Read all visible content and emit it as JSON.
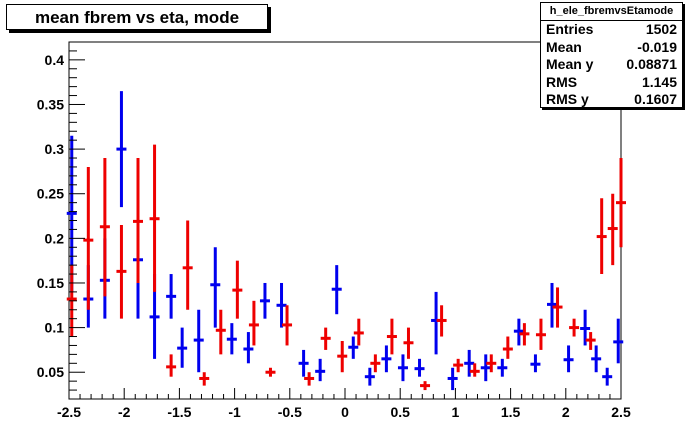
{
  "title": "mean fbrem vs eta, mode",
  "stats": {
    "name": "h_ele_fbremvsEtamode",
    "rows": [
      {
        "label": "Entries",
        "value": "1502"
      },
      {
        "label": "Mean",
        "value": "-0.019"
      },
      {
        "label": "Mean y",
        "value": "0.08871"
      },
      {
        "label": "RMS",
        "value": "1.145"
      },
      {
        "label": "RMS y",
        "value": "0.1607"
      }
    ]
  },
  "chart_data": {
    "type": "scatter",
    "title": "mean fbrem vs eta, mode",
    "xlabel": "",
    "ylabel": "",
    "xlim": [
      -2.5,
      2.5
    ],
    "ylim": [
      0.02,
      0.42
    ],
    "xticks": [
      -2.5,
      -2,
      -1.5,
      -1,
      -0.5,
      0,
      0.5,
      1,
      1.5,
      2,
      2.5
    ],
    "xtick_labels": [
      "-2.5",
      "-2",
      "-1.5",
      "-1",
      "-0.5",
      "0",
      "0.5",
      "1",
      "1.5",
      "2",
      "2.5"
    ],
    "yticks": [
      0.05,
      0.1,
      0.15,
      0.2,
      0.25,
      0.3,
      0.35,
      0.4
    ],
    "ytick_labels": [
      "0.05",
      "0.1",
      "0.15",
      "0.2",
      "0.25",
      "0.3",
      "0.35",
      "0.4"
    ],
    "grid": false,
    "colors": {
      "blue": "#0000ee",
      "red": "#ee0000"
    },
    "series": [
      {
        "color": "blue",
        "points": [
          {
            "x": -2.475,
            "y": 0.228,
            "ylo": 0.14,
            "yhi": 0.315
          },
          {
            "x": -2.325,
            "y": 0.132,
            "ylo": 0.1,
            "yhi": 0.17
          },
          {
            "x": -2.175,
            "y": 0.153,
            "ylo": 0.11,
            "yhi": 0.2
          },
          {
            "x": -2.025,
            "y": 0.3,
            "ylo": 0.235,
            "yhi": 0.365
          },
          {
            "x": -1.875,
            "y": 0.176,
            "ylo": 0.11,
            "yhi": 0.25
          },
          {
            "x": -1.725,
            "y": 0.112,
            "ylo": 0.065,
            "yhi": 0.16
          },
          {
            "x": -1.575,
            "y": 0.135,
            "ylo": 0.11,
            "yhi": 0.16
          },
          {
            "x": -1.475,
            "y": 0.077,
            "ylo": 0.055,
            "yhi": 0.1
          },
          {
            "x": -1.325,
            "y": 0.086,
            "ylo": 0.05,
            "yhi": 0.12
          },
          {
            "x": -1.175,
            "y": 0.148,
            "ylo": 0.1,
            "yhi": 0.19
          },
          {
            "x": -1.025,
            "y": 0.087,
            "ylo": 0.07,
            "yhi": 0.105
          },
          {
            "x": -0.875,
            "y": 0.076,
            "ylo": 0.06,
            "yhi": 0.095
          },
          {
            "x": -0.725,
            "y": 0.13,
            "ylo": 0.11,
            "yhi": 0.15
          },
          {
            "x": -0.575,
            "y": 0.125,
            "ylo": 0.1,
            "yhi": 0.15
          },
          {
            "x": -0.375,
            "y": 0.06,
            "ylo": 0.045,
            "yhi": 0.075
          },
          {
            "x": -0.225,
            "y": 0.051,
            "ylo": 0.04,
            "yhi": 0.065
          },
          {
            "x": -0.075,
            "y": 0.143,
            "ylo": 0.115,
            "yhi": 0.17
          },
          {
            "x": 0.075,
            "y": 0.078,
            "ylo": 0.065,
            "yhi": 0.09
          },
          {
            "x": 0.225,
            "y": 0.045,
            "ylo": 0.035,
            "yhi": 0.055
          },
          {
            "x": 0.375,
            "y": 0.065,
            "ylo": 0.05,
            "yhi": 0.08
          },
          {
            "x": 0.525,
            "y": 0.055,
            "ylo": 0.04,
            "yhi": 0.07
          },
          {
            "x": 0.675,
            "y": 0.054,
            "ylo": 0.045,
            "yhi": 0.065
          },
          {
            "x": 0.825,
            "y": 0.108,
            "ylo": 0.07,
            "yhi": 0.14
          },
          {
            "x": 0.975,
            "y": 0.043,
            "ylo": 0.03,
            "yhi": 0.055
          },
          {
            "x": 1.125,
            "y": 0.06,
            "ylo": 0.045,
            "yhi": 0.075
          },
          {
            "x": 1.275,
            "y": 0.055,
            "ylo": 0.04,
            "yhi": 0.07
          },
          {
            "x": 1.425,
            "y": 0.055,
            "ylo": 0.045,
            "yhi": 0.065
          },
          {
            "x": 1.575,
            "y": 0.096,
            "ylo": 0.08,
            "yhi": 0.11
          },
          {
            "x": 1.725,
            "y": 0.059,
            "ylo": 0.05,
            "yhi": 0.07
          },
          {
            "x": 1.875,
            "y": 0.126,
            "ylo": 0.1,
            "yhi": 0.15
          },
          {
            "x": 2.025,
            "y": 0.064,
            "ylo": 0.05,
            "yhi": 0.08
          },
          {
            "x": 2.175,
            "y": 0.099,
            "ylo": 0.08,
            "yhi": 0.12
          },
          {
            "x": 2.275,
            "y": 0.065,
            "ylo": 0.05,
            "yhi": 0.08
          },
          {
            "x": 2.375,
            "y": 0.045,
            "ylo": 0.035,
            "yhi": 0.055
          },
          {
            "x": 2.475,
            "y": 0.084,
            "ylo": 0.06,
            "yhi": 0.11
          }
        ]
      },
      {
        "color": "red",
        "points": [
          {
            "x": -2.475,
            "y": 0.132,
            "ylo": 0.09,
            "yhi": 0.17
          },
          {
            "x": -2.325,
            "y": 0.198,
            "ylo": 0.12,
            "yhi": 0.28
          },
          {
            "x": -2.175,
            "y": 0.213,
            "ylo": 0.135,
            "yhi": 0.29
          },
          {
            "x": -2.025,
            "y": 0.163,
            "ylo": 0.11,
            "yhi": 0.215
          },
          {
            "x": -1.875,
            "y": 0.219,
            "ylo": 0.15,
            "yhi": 0.29
          },
          {
            "x": -1.725,
            "y": 0.222,
            "ylo": 0.14,
            "yhi": 0.305
          },
          {
            "x": -1.575,
            "y": 0.056,
            "ylo": 0.045,
            "yhi": 0.07
          },
          {
            "x": -1.425,
            "y": 0.167,
            "ylo": 0.12,
            "yhi": 0.22
          },
          {
            "x": -1.275,
            "y": 0.043,
            "ylo": 0.035,
            "yhi": 0.05
          },
          {
            "x": -1.125,
            "y": 0.097,
            "ylo": 0.07,
            "yhi": 0.12
          },
          {
            "x": -0.975,
            "y": 0.142,
            "ylo": 0.11,
            "yhi": 0.175
          },
          {
            "x": -0.825,
            "y": 0.103,
            "ylo": 0.08,
            "yhi": 0.13
          },
          {
            "x": -0.675,
            "y": 0.05,
            "ylo": 0.045,
            "yhi": 0.055
          },
          {
            "x": -0.525,
            "y": 0.103,
            "ylo": 0.08,
            "yhi": 0.125
          },
          {
            "x": -0.325,
            "y": 0.043,
            "ylo": 0.035,
            "yhi": 0.05
          },
          {
            "x": -0.175,
            "y": 0.088,
            "ylo": 0.075,
            "yhi": 0.1
          },
          {
            "x": -0.025,
            "y": 0.068,
            "ylo": 0.05,
            "yhi": 0.085
          },
          {
            "x": 0.125,
            "y": 0.094,
            "ylo": 0.08,
            "yhi": 0.11
          },
          {
            "x": 0.275,
            "y": 0.06,
            "ylo": 0.05,
            "yhi": 0.07
          },
          {
            "x": 0.425,
            "y": 0.09,
            "ylo": 0.07,
            "yhi": 0.11
          },
          {
            "x": 0.575,
            "y": 0.083,
            "ylo": 0.065,
            "yhi": 0.1
          },
          {
            "x": 0.725,
            "y": 0.035,
            "ylo": 0.03,
            "yhi": 0.04
          },
          {
            "x": 0.875,
            "y": 0.108,
            "ylo": 0.09,
            "yhi": 0.125
          },
          {
            "x": 1.025,
            "y": 0.058,
            "ylo": 0.05,
            "yhi": 0.065
          },
          {
            "x": 1.175,
            "y": 0.051,
            "ylo": 0.045,
            "yhi": 0.06
          },
          {
            "x": 1.325,
            "y": 0.06,
            "ylo": 0.05,
            "yhi": 0.07
          },
          {
            "x": 1.475,
            "y": 0.076,
            "ylo": 0.065,
            "yhi": 0.09
          },
          {
            "x": 1.625,
            "y": 0.093,
            "ylo": 0.08,
            "yhi": 0.105
          },
          {
            "x": 1.775,
            "y": 0.092,
            "ylo": 0.075,
            "yhi": 0.11
          },
          {
            "x": 1.925,
            "y": 0.123,
            "ylo": 0.1,
            "yhi": 0.145
          },
          {
            "x": 2.075,
            "y": 0.1,
            "ylo": 0.09,
            "yhi": 0.11
          },
          {
            "x": 2.225,
            "y": 0.086,
            "ylo": 0.075,
            "yhi": 0.095
          },
          {
            "x": 2.325,
            "y": 0.202,
            "ylo": 0.16,
            "yhi": 0.245
          },
          {
            "x": 2.425,
            "y": 0.211,
            "ylo": 0.17,
            "yhi": 0.25
          },
          {
            "x": 2.5,
            "y": 0.24,
            "ylo": 0.19,
            "yhi": 0.29
          }
        ]
      }
    ]
  }
}
